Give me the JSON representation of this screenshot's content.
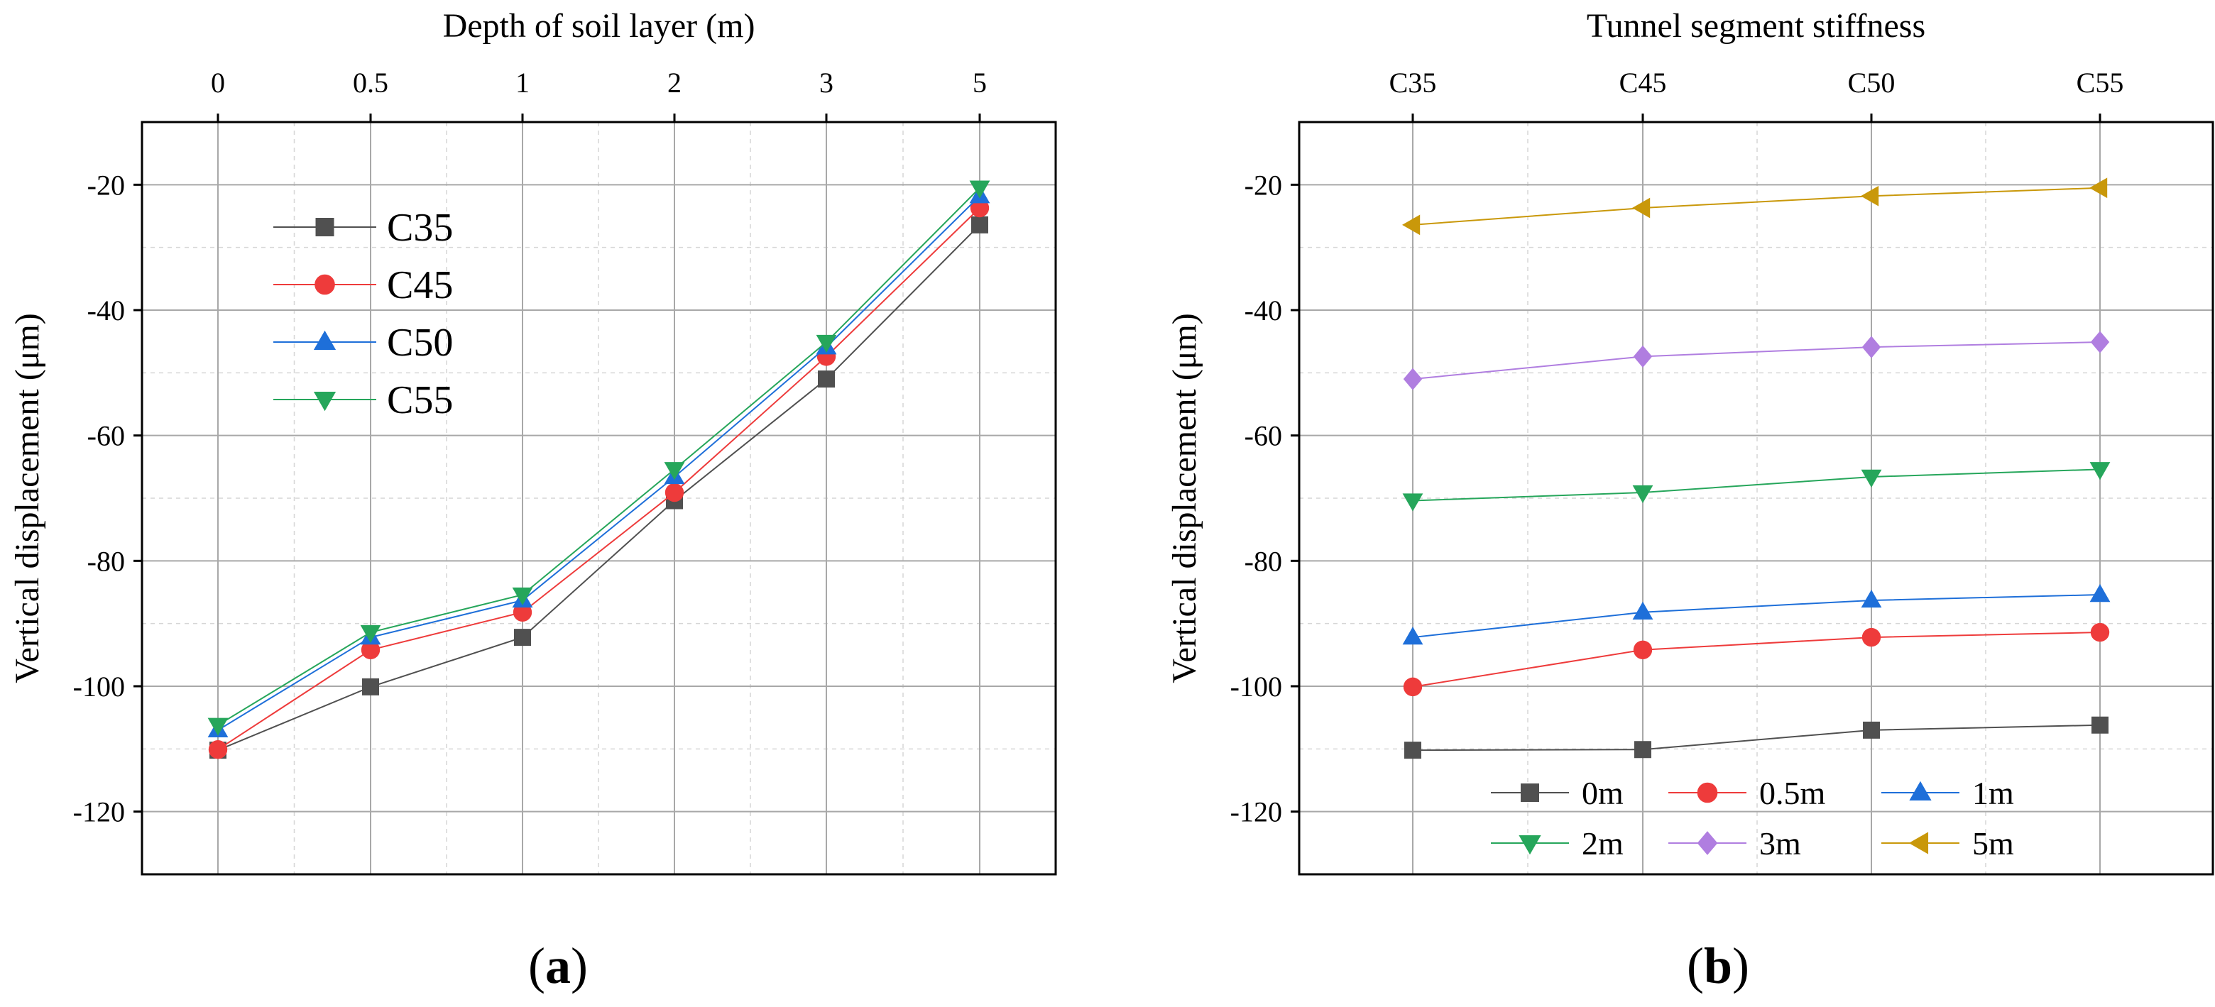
{
  "chart_data": [
    {
      "id": "a",
      "type": "line",
      "panel_label": "(a)",
      "panel_letter": "a",
      "title": "",
      "xlabel": "Depth of soil layer (m)",
      "xlabel_position": "top",
      "ylabel": "Vertical displacement (μm)",
      "categories": [
        "0",
        "0.5",
        "1",
        "2",
        "3",
        "5"
      ],
      "ylim": [
        -130,
        -10
      ],
      "yticks": [
        -20,
        -40,
        -60,
        -80,
        -100,
        -120
      ],
      "ytick_labels": [
        "-20",
        "-40",
        "-60",
        "-80",
        "-100",
        "-120"
      ],
      "grid": true,
      "legend_position": "top-left",
      "series": [
        {
          "name": "C35",
          "marker": "square",
          "color": "#505050",
          "values": [
            -110.2,
            -100.1,
            -92.2,
            -70.4,
            -51.0,
            -26.4
          ]
        },
        {
          "name": "C45",
          "marker": "circle",
          "color": "#ee3b3b",
          "values": [
            -110.1,
            -94.2,
            -88.2,
            -69.1,
            -47.4,
            -23.7
          ]
        },
        {
          "name": "C50",
          "marker": "triangle-up",
          "color": "#1e6fd9",
          "values": [
            -107.0,
            -92.2,
            -86.3,
            -66.6,
            -45.9,
            -21.8
          ]
        },
        {
          "name": "C55",
          "marker": "triangle-down",
          "color": "#26a65b",
          "values": [
            -106.2,
            -91.4,
            -85.4,
            -65.4,
            -45.1,
            -20.5
          ]
        }
      ]
    },
    {
      "id": "b",
      "type": "line",
      "panel_label": "(b)",
      "panel_letter": "b",
      "title": "",
      "xlabel": "Tunnel segment stiffness",
      "xlabel_position": "top",
      "ylabel": "Vertical displacement (μm)",
      "categories": [
        "C35",
        "C45",
        "C50",
        "C55"
      ],
      "ylim": [
        -130,
        -10
      ],
      "yticks": [
        -20,
        -40,
        -60,
        -80,
        -100,
        -120
      ],
      "ytick_labels": [
        "-20",
        "-40",
        "-60",
        "-80",
        "-100",
        "-120"
      ],
      "grid": true,
      "legend_position": "bottom",
      "series": [
        {
          "name": "0m",
          "marker": "square",
          "color": "#505050",
          "values": [
            -110.2,
            -110.1,
            -107.0,
            -106.2
          ]
        },
        {
          "name": "0.5m",
          "marker": "circle",
          "color": "#ee3b3b",
          "values": [
            -100.1,
            -94.2,
            -92.2,
            -91.4
          ]
        },
        {
          "name": "1m",
          "marker": "triangle-up",
          "color": "#1e6fd9",
          "values": [
            -92.2,
            -88.2,
            -86.3,
            -85.4
          ]
        },
        {
          "name": "2m",
          "marker": "triangle-down",
          "color": "#26a65b",
          "values": [
            -70.4,
            -69.1,
            -66.6,
            -65.4
          ]
        },
        {
          "name": "3m",
          "marker": "diamond",
          "color": "#b07ee0",
          "values": [
            -51.0,
            -47.4,
            -45.9,
            -45.1
          ]
        },
        {
          "name": "5m",
          "marker": "triangle-left",
          "color": "#c9980a",
          "values": [
            -26.4,
            -23.7,
            -21.8,
            -20.5
          ]
        }
      ]
    }
  ]
}
